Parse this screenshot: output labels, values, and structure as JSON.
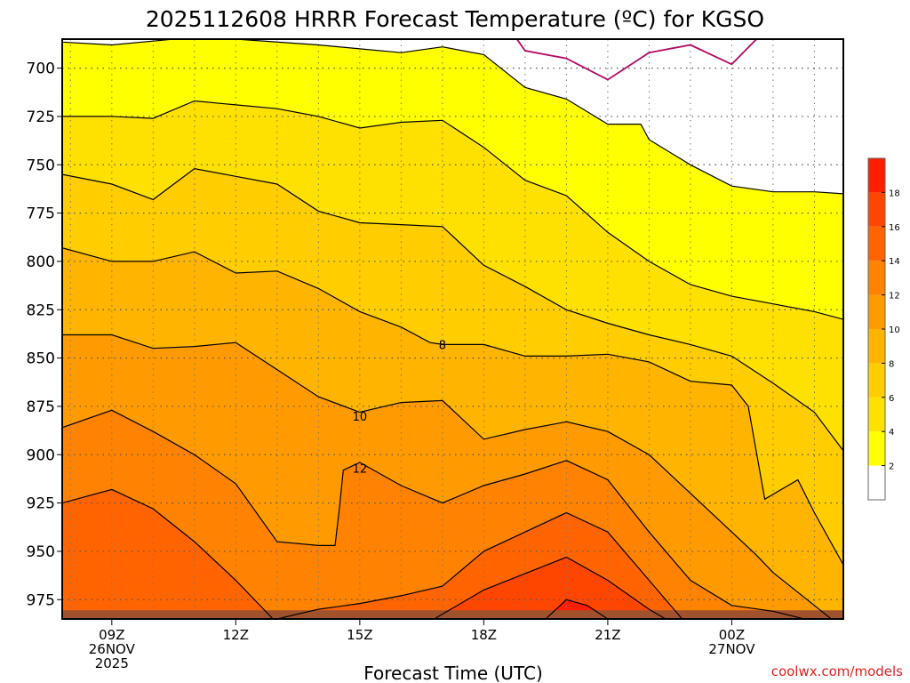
{
  "chart_data": {
    "type": "contour",
    "title": "2025112608 HRRR Forecast Temperature (ºC) for KGSO",
    "xlabel": "Forecast Time (UTC)",
    "ylabel": "",
    "credit": "coolwx.com/models",
    "x_range_hours": [
      7.8,
      26.7
    ],
    "y_range_hpa": [
      685,
      985
    ],
    "y_ticks": [
      700,
      725,
      750,
      775,
      800,
      825,
      850,
      875,
      900,
      925,
      950,
      975
    ],
    "y_tick_labels": [
      "700",
      "725",
      "750",
      "775",
      "800",
      "825",
      "850",
      "875",
      "900",
      "925",
      "950",
      "975"
    ],
    "x_ticks": [
      {
        "hour": 9,
        "lines": [
          "09Z",
          "26NOV",
          "2025"
        ]
      },
      {
        "hour": 12,
        "lines": [
          "12Z"
        ]
      },
      {
        "hour": 15,
        "lines": [
          "15Z"
        ]
      },
      {
        "hour": 18,
        "lines": [
          "18Z"
        ]
      },
      {
        "hour": 21,
        "lines": [
          "21Z"
        ]
      },
      {
        "hour": 24,
        "lines": [
          "00Z",
          "27NOV"
        ]
      }
    ],
    "contour_levels": [
      0,
      2,
      4,
      6,
      8,
      10,
      12,
      14,
      16,
      18
    ],
    "contour_labels": [
      {
        "level": "8",
        "hour": 17.0,
        "hpa": 843
      },
      {
        "level": "10",
        "hour": 15.0,
        "hpa": 880
      },
      {
        "level": "12",
        "hour": 15.0,
        "hpa": 907
      }
    ],
    "colorbar": {
      "labels": [
        "2",
        "4",
        "6",
        "8",
        "10",
        "12",
        "14",
        "16",
        "18"
      ],
      "colors": [
        "#ffffff",
        "#ffff00",
        "#ffe100",
        "#ffcd00",
        "#ffb400",
        "#ff9b00",
        "#ff8200",
        "#ff6400",
        "#ff4600",
        "#ff1e00"
      ]
    },
    "fill_colors": {
      "lt0": "#ffffff",
      "0_2": "#ffffff",
      "2_4": "#ffff00",
      "4_6": "#ffe100",
      "6_8": "#ffcd00",
      "8_10": "#ffb400",
      "10_12": "#ff9b00",
      "12_14": "#ff8200",
      "14_16": "#ff6400",
      "16_18": "#ff4600",
      "ge18": "#ff1e00"
    },
    "freezing_line_color": "#b40a64",
    "ground_color": "#a0522d",
    "isotherms": [
      {
        "level": 0,
        "points": [
          [
            18.8,
            685
          ],
          [
            19.0,
            691
          ],
          [
            20.0,
            695
          ],
          [
            21.0,
            706
          ],
          [
            22.0,
            692
          ],
          [
            23.0,
            688
          ],
          [
            24.0,
            698
          ],
          [
            24.6,
            685
          ]
        ]
      },
      {
        "level": 2,
        "points": [
          [
            7.8,
            686.5
          ],
          [
            9.0,
            688
          ],
          [
            10.0,
            686
          ],
          [
            11.0,
            684
          ],
          [
            11.6,
            684
          ],
          [
            12.0,
            685
          ],
          [
            14.0,
            688
          ],
          [
            15.0,
            690
          ],
          [
            16.0,
            692
          ],
          [
            17.0,
            689
          ],
          [
            18.0,
            693
          ],
          [
            19.0,
            710
          ],
          [
            20.0,
            716
          ],
          [
            21.0,
            729
          ],
          [
            21.8,
            729
          ],
          [
            22.0,
            737
          ],
          [
            23.0,
            750
          ],
          [
            24.0,
            761
          ],
          [
            25.0,
            764
          ],
          [
            26.0,
            764
          ],
          [
            26.7,
            765
          ]
        ]
      },
      {
        "level": 4,
        "points": [
          [
            7.8,
            725
          ],
          [
            9.0,
            725
          ],
          [
            10.0,
            726
          ],
          [
            11.0,
            717
          ],
          [
            12.0,
            719
          ],
          [
            13.0,
            721
          ],
          [
            14.0,
            725
          ],
          [
            15.0,
            731
          ],
          [
            16.0,
            728
          ],
          [
            17.0,
            727
          ],
          [
            18.0,
            741
          ],
          [
            19.0,
            758
          ],
          [
            20.0,
            766
          ],
          [
            21.0,
            785
          ],
          [
            22.0,
            800
          ],
          [
            23.0,
            812
          ],
          [
            24.0,
            818
          ],
          [
            25.0,
            822
          ],
          [
            26.0,
            826
          ],
          [
            26.7,
            830
          ]
        ]
      },
      {
        "level": 6,
        "points": [
          [
            7.8,
            755
          ],
          [
            9.0,
            760
          ],
          [
            10.0,
            768
          ],
          [
            11.0,
            752
          ],
          [
            12.0,
            756
          ],
          [
            13.0,
            760
          ],
          [
            14.0,
            774
          ],
          [
            15.0,
            780
          ],
          [
            16.0,
            781
          ],
          [
            17.0,
            782
          ],
          [
            18.0,
            802
          ],
          [
            19.0,
            813
          ],
          [
            20.0,
            825
          ],
          [
            21.0,
            832
          ],
          [
            22.0,
            838
          ],
          [
            23.0,
            843
          ],
          [
            24.0,
            849
          ],
          [
            25.0,
            863
          ],
          [
            26.0,
            878
          ],
          [
            26.7,
            898
          ]
        ]
      },
      {
        "level": 8,
        "points": [
          [
            7.8,
            793
          ],
          [
            9.0,
            800
          ],
          [
            10.0,
            800
          ],
          [
            11.0,
            795
          ],
          [
            12.0,
            806
          ],
          [
            13.0,
            805
          ],
          [
            14.0,
            814
          ],
          [
            15.0,
            826
          ],
          [
            16.0,
            834
          ],
          [
            16.7,
            842
          ],
          [
            17.0,
            843
          ],
          [
            18.0,
            843
          ],
          [
            19.0,
            849
          ],
          [
            20.0,
            849
          ],
          [
            21.0,
            848
          ],
          [
            22.0,
            852
          ],
          [
            23.0,
            862
          ],
          [
            24.0,
            864
          ],
          [
            24.4,
            875
          ],
          [
            24.8,
            923
          ],
          [
            25.6,
            913
          ],
          [
            26.0,
            930
          ],
          [
            26.7,
            957
          ]
        ]
      },
      {
        "level": 10,
        "points": [
          [
            7.8,
            838
          ],
          [
            9.0,
            838
          ],
          [
            10.0,
            845
          ],
          [
            11.0,
            844
          ],
          [
            12.0,
            842
          ],
          [
            13.0,
            856
          ],
          [
            14.0,
            870
          ],
          [
            15.0,
            878
          ],
          [
            16.0,
            873
          ],
          [
            17.0,
            872
          ],
          [
            18.0,
            892
          ],
          [
            19.0,
            887
          ],
          [
            20.0,
            883
          ],
          [
            21.0,
            888
          ],
          [
            22.0,
            900
          ],
          [
            23.0,
            920
          ],
          [
            24.0,
            940
          ],
          [
            24.6,
            952
          ],
          [
            25.0,
            961
          ],
          [
            26.0,
            978
          ],
          [
            26.7,
            990
          ]
        ]
      },
      {
        "level": 12,
        "points": [
          [
            7.8,
            886
          ],
          [
            9.0,
            877
          ],
          [
            10.0,
            888
          ],
          [
            11.0,
            900
          ],
          [
            12.0,
            915
          ],
          [
            13.0,
            945
          ],
          [
            14.0,
            947
          ],
          [
            14.4,
            947
          ],
          [
            14.5,
            929
          ],
          [
            14.6,
            908
          ],
          [
            15.0,
            904
          ],
          [
            16.0,
            916
          ],
          [
            17.0,
            925
          ],
          [
            18.0,
            916
          ],
          [
            19.0,
            910
          ],
          [
            20.0,
            903
          ],
          [
            21.0,
            913
          ],
          [
            22.0,
            940
          ],
          [
            23.0,
            965
          ],
          [
            24.0,
            978
          ],
          [
            25.0,
            981
          ],
          [
            26.7,
            990
          ]
        ]
      },
      {
        "level": 14,
        "points": [
          [
            7.8,
            925
          ],
          [
            9.0,
            918
          ],
          [
            10.0,
            928
          ],
          [
            11.0,
            945
          ],
          [
            12.0,
            965
          ],
          [
            12.9,
            985
          ]
        ]
      },
      {
        "level": 14,
        "points": [
          [
            13.0,
            985
          ],
          [
            14.0,
            980
          ],
          [
            15.0,
            977
          ],
          [
            16.0,
            973
          ],
          [
            17.0,
            968
          ],
          [
            18.0,
            950
          ],
          [
            19.0,
            940
          ],
          [
            20.0,
            930
          ],
          [
            21.0,
            940
          ],
          [
            22.0,
            965
          ],
          [
            22.8,
            985
          ]
        ]
      },
      {
        "level": 16,
        "points": [
          [
            16.8,
            985
          ],
          [
            18.0,
            970
          ],
          [
            20.0,
            953
          ],
          [
            21.0,
            965
          ],
          [
            22.0,
            980
          ],
          [
            22.4,
            985
          ]
        ]
      },
      {
        "level": 18,
        "points": [
          [
            19.5,
            985
          ],
          [
            20.0,
            975
          ],
          [
            20.5,
            978
          ],
          [
            21.0,
            985
          ]
        ]
      }
    ]
  }
}
